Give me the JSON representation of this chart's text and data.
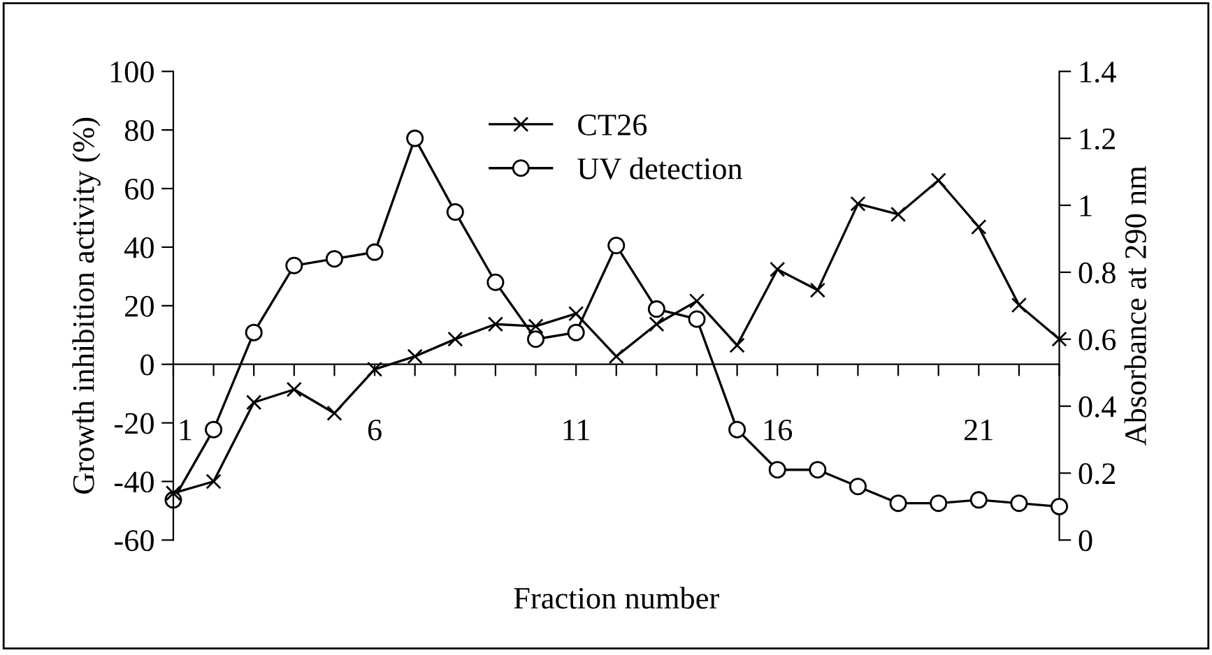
{
  "chart_data": {
    "type": "line",
    "xlabel": "Fraction number",
    "ylabel": "Growth inhibition activity (%)",
    "y2label": "Absorbance at 290 nm",
    "x": [
      1,
      2,
      3,
      4,
      5,
      6,
      7,
      8,
      9,
      10,
      11,
      12,
      13,
      14,
      15,
      16,
      17,
      18,
      19,
      20,
      21,
      22,
      23
    ],
    "xlim": [
      1,
      23
    ],
    "xticks": [
      1,
      {
        "value": 2,
        "label": null
      },
      {
        "value": 3,
        "label": null
      },
      {
        "value": 4,
        "label": null
      },
      {
        "value": 5,
        "label": null
      },
      6,
      {
        "value": 7,
        "label": null
      },
      {
        "value": 8,
        "label": null
      },
      {
        "value": 9,
        "label": null
      },
      {
        "value": 10,
        "label": null
      },
      11,
      {
        "value": 12,
        "label": null
      },
      {
        "value": 13,
        "label": null
      },
      {
        "value": 14,
        "label": null
      },
      {
        "value": 15,
        "label": null
      },
      16,
      {
        "value": 17,
        "label": null
      },
      {
        "value": 18,
        "label": null
      },
      {
        "value": 19,
        "label": null
      },
      {
        "value": 20,
        "label": null
      },
      21,
      {
        "value": 22,
        "label": null
      },
      {
        "value": 23,
        "label": null
      }
    ],
    "ylim": [
      -60,
      100
    ],
    "yticks": [
      -60,
      -40,
      -20,
      0,
      20,
      40,
      60,
      80,
      100
    ],
    "y2lim": [
      0,
      1.4
    ],
    "y2ticks": [
      0,
      0.2,
      0.4,
      0.6,
      0.8,
      1,
      1.2,
      1.4
    ],
    "grid": false,
    "legend": "top",
    "line_style": "solid",
    "series": [
      {
        "name": "CT26",
        "color": "#000000",
        "marker": "cross",
        "values": [
          -44,
          -40,
          -13,
          -8.6,
          -16.7,
          -1.7,
          2.7,
          8.6,
          13.7,
          13,
          17.3,
          2.7,
          13.7,
          21.6,
          6.5,
          32.4,
          25.3,
          54.8,
          51.2,
          62.8,
          46.9,
          20.2,
          8.6
        ]
      },
      {
        "name": "UV detection",
        "color": "#000000",
        "marker": "circle",
        "axis": "y2",
        "values": [
          0.12,
          0.33,
          0.62,
          0.82,
          0.84,
          0.86,
          1.2,
          0.98,
          0.77,
          0.6,
          0.62,
          0.88,
          0.69,
          0.66,
          0.33,
          0.21,
          0.21,
          0.16,
          0.11,
          0.11,
          0.12,
          0.11,
          0.1
        ]
      }
    ]
  }
}
